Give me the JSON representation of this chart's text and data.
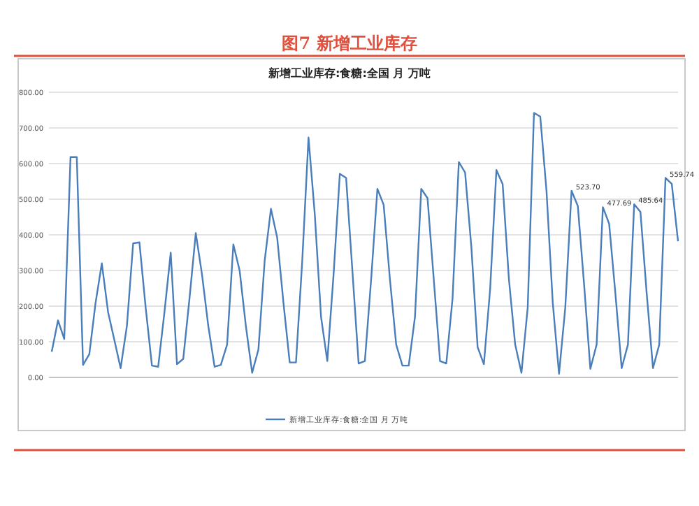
{
  "chart_data": {
    "type": "line",
    "title": "图7 新增工业库存",
    "subtitle": "新增工业库存:食糖:全国 月 万吨",
    "categories": [
      null,
      null,
      null,
      null,
      null,
      null,
      null,
      null,
      null,
      null,
      null,
      null,
      null,
      null,
      null,
      null,
      null,
      null,
      null,
      null,
      null,
      null,
      null,
      null,
      null,
      null,
      null,
      null,
      null,
      null,
      null,
      null,
      null,
      null,
      null,
      null,
      null,
      null,
      null,
      null,
      null,
      null,
      null,
      null,
      null,
      null,
      null,
      null,
      null,
      null,
      null,
      null,
      null,
      null,
      null,
      null,
      null,
      null,
      null,
      null,
      null,
      null,
      null,
      null,
      null,
      null,
      null,
      null,
      null,
      null,
      null,
      null,
      null,
      null,
      null,
      null,
      null,
      null,
      null,
      null,
      null,
      null,
      null,
      null,
      null,
      null,
      null,
      null,
      null,
      null,
      null,
      null,
      null,
      null,
      null,
      null,
      null,
      null,
      null,
      null,
      null
    ],
    "series": [
      {
        "name": "新增工业库存:食糖:全国 月 万吨",
        "color": "#4a7ebb",
        "values": [
          72,
          160,
          108,
          618,
          618,
          35,
          65,
          209,
          320,
          183,
          105,
          26,
          144,
          376,
          379,
          196,
          33,
          30,
          183,
          350,
          37,
          52,
          222,
          405,
          288,
          144,
          30,
          35,
          92,
          373,
          300,
          144,
          13,
          78,
          327,
          473,
          392,
          209,
          42,
          42,
          327,
          673,
          458,
          170,
          46,
          288,
          571,
          560,
          301,
          39,
          46,
          275,
          529,
          484,
          275,
          92,
          33,
          33,
          170,
          529,
          503,
          275,
          46,
          39,
          222,
          604,
          575,
          366,
          85,
          37,
          248,
          582,
          542,
          275,
          92,
          13,
          196,
          742,
          732,
          523,
          209,
          10,
          196,
          523.7,
          481,
          261,
          24,
          92,
          477.69,
          431,
          235,
          26,
          92,
          485.64,
          464,
          235,
          26,
          92,
          559.74,
          543,
          382
        ],
        "value_labels": [
          null,
          null,
          null,
          null,
          null,
          null,
          null,
          null,
          null,
          null,
          null,
          null,
          null,
          null,
          null,
          null,
          null,
          null,
          null,
          null,
          null,
          null,
          null,
          null,
          null,
          null,
          null,
          null,
          null,
          null,
          null,
          null,
          null,
          null,
          null,
          null,
          null,
          null,
          null,
          null,
          null,
          null,
          null,
          null,
          null,
          null,
          null,
          null,
          null,
          null,
          null,
          null,
          null,
          null,
          null,
          null,
          null,
          null,
          null,
          null,
          null,
          null,
          null,
          null,
          null,
          null,
          null,
          null,
          null,
          null,
          null,
          null,
          null,
          null,
          null,
          null,
          null,
          null,
          null,
          null,
          null,
          null,
          null,
          "523.70",
          null,
          null,
          null,
          null,
          "477.69",
          null,
          null,
          null,
          null,
          "485.64",
          null,
          null,
          null,
          null,
          "559.74",
          null,
          null
        ]
      }
    ],
    "ylim": [
      0,
      800
    ],
    "yticks": [
      {
        "value": 0,
        "label": "0.00"
      },
      {
        "value": 100,
        "label": "100.00"
      },
      {
        "value": 200,
        "label": "200.00"
      },
      {
        "value": 300,
        "label": "300.00"
      },
      {
        "value": 400,
        "label": "400.00"
      },
      {
        "value": 500,
        "label": "500.00"
      },
      {
        "value": 600,
        "label": "600.00"
      },
      {
        "value": 700,
        "label": "700.00"
      },
      {
        "value": 800,
        "label": "800.00"
      }
    ],
    "grid": "y",
    "legend": "bottom",
    "marker": "none",
    "line_style": "solid"
  }
}
